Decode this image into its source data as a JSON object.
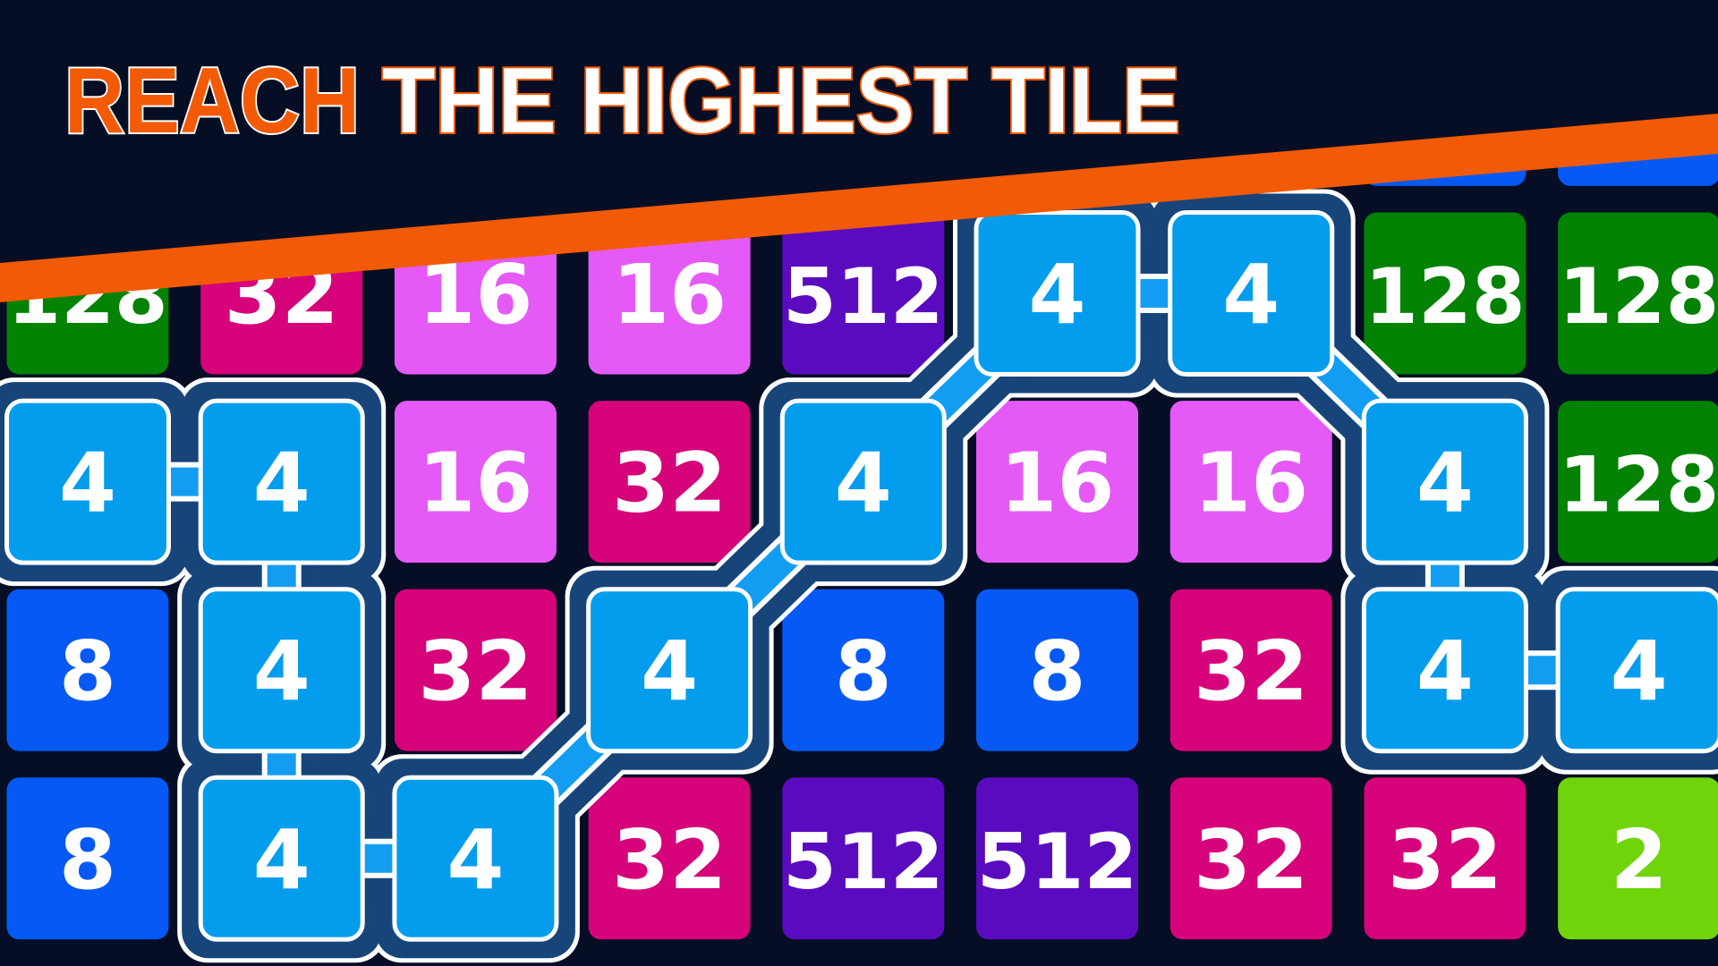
{
  "title": {
    "word1": "REACH",
    "word2": "THE HIGHEST TILE",
    "word1_color": "#f25a05",
    "word2_color": "#ffffff"
  },
  "colors": {
    "background": "#050e24",
    "stripe": "#f25a05",
    "path_band": "#17457a",
    "2": "#6fd40a",
    "4": "#049ded",
    "8": "#0659f5",
    "16": "#e55af7",
    "32": "#d6037a",
    "128": "#038203",
    "512": "#5b0bbf",
    "hidden": "#0659f5"
  },
  "board": {
    "hidden_row": [
      null,
      null,
      null,
      null,
      null,
      null,
      null,
      "hidden",
      "hidden"
    ],
    "rows": [
      [
        128,
        32,
        16,
        16,
        512,
        4,
        4,
        128,
        128
      ],
      [
        4,
        4,
        16,
        32,
        4,
        16,
        16,
        4,
        128
      ],
      [
        8,
        4,
        32,
        4,
        8,
        8,
        32,
        4,
        4
      ],
      [
        8,
        4,
        4,
        32,
        512,
        512,
        32,
        32,
        2
      ]
    ],
    "selected_path": [
      [
        1,
        0
      ],
      [
        1,
        1
      ],
      [
        2,
        1
      ],
      [
        3,
        1
      ],
      [
        3,
        2
      ],
      [
        2,
        3
      ],
      [
        1,
        4
      ],
      [
        0,
        5
      ],
      [
        0,
        6
      ],
      [
        1,
        7
      ],
      [
        2,
        7
      ],
      [
        2,
        8
      ]
    ]
  }
}
